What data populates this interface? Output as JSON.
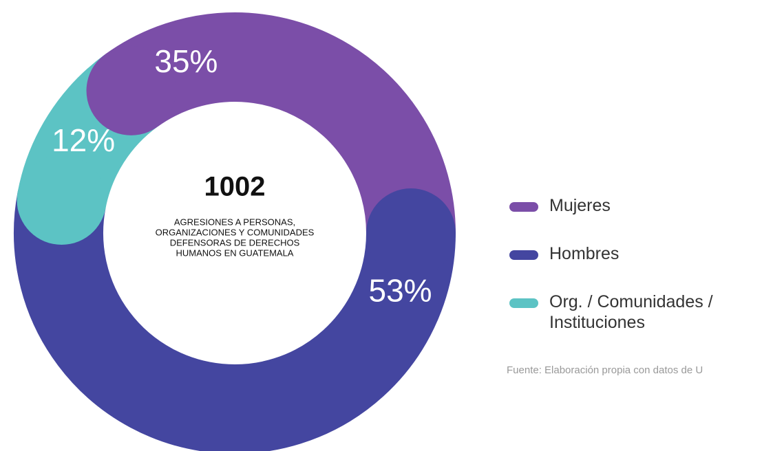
{
  "chart_data": {
    "type": "donut",
    "categories": [
      "Mujeres",
      "Hombres",
      "Org. / Comunidades / Instituciones"
    ],
    "values": [
      35,
      53,
      12
    ],
    "value_labels": [
      "35%",
      "53%",
      "12%"
    ],
    "colors": [
      "#7b4ea8",
      "#4446a0",
      "#5cc3c4"
    ],
    "total": 1002,
    "center_text": [
      "AGRESIONES A PERSONAS,",
      "ORGANIZACIONES Y COMUNIDADES",
      "DEFENSORAS DE DERECHOS",
      "HUMANOS EN GUATEMALA"
    ],
    "source": "Fuente: Elaboración propia con datos de U"
  }
}
